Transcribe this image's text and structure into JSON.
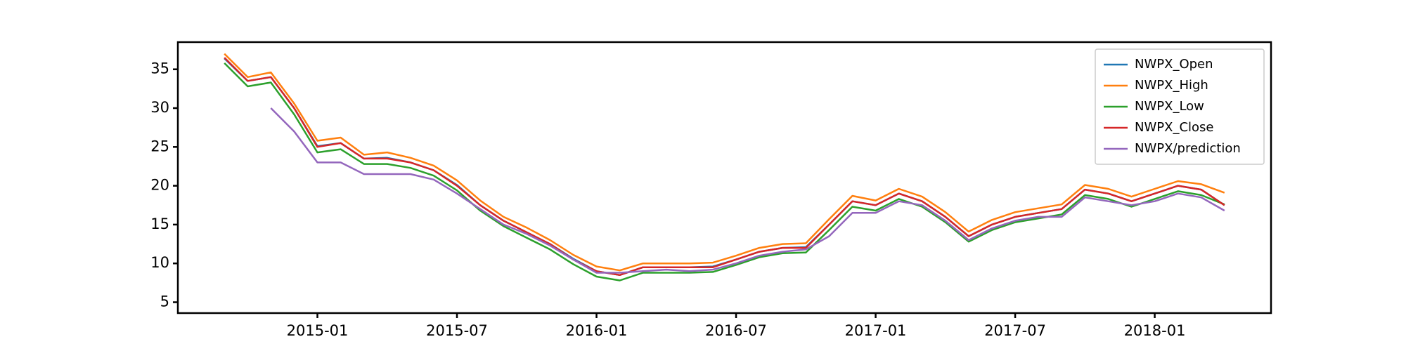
{
  "chart_data": {
    "type": "line",
    "x": [
      "2014-09",
      "2014-10",
      "2014-11",
      "2014-12",
      "2015-01",
      "2015-02",
      "2015-03",
      "2015-04",
      "2015-05",
      "2015-06",
      "2015-07",
      "2015-08",
      "2015-09",
      "2015-10",
      "2015-11",
      "2015-12",
      "2016-01",
      "2016-02",
      "2016-03",
      "2016-04",
      "2016-05",
      "2016-06",
      "2016-07",
      "2016-08",
      "2016-09",
      "2016-10",
      "2016-11",
      "2016-12",
      "2017-01",
      "2017-02",
      "2017-03",
      "2017-04",
      "2017-05",
      "2017-06",
      "2017-07",
      "2017-08",
      "2017-09",
      "2017-10",
      "2017-11",
      "2017-12",
      "2018-01",
      "2018-02",
      "2018-03",
      "2018-04"
    ],
    "series": [
      {
        "name": "NWPX_Open",
        "color": "#1f77b4",
        "values": [
          36.4,
          33.5,
          34.0,
          30.0,
          25.1,
          25.5,
          23.5,
          23.6,
          23.0,
          22.0,
          20.1,
          17.5,
          15.5,
          14.0,
          12.5,
          10.6,
          9.0,
          8.5,
          9.5,
          9.5,
          9.5,
          9.6,
          10.5,
          11.5,
          12.0,
          12.1,
          15.0,
          18.0,
          17.5,
          19.0,
          18.0,
          16.0,
          13.5,
          15.0,
          16.0,
          16.5,
          17.0,
          19.5,
          19.0,
          18.0,
          19.0,
          20.0,
          19.5,
          17.5
        ]
      },
      {
        "name": "NWPX_High",
        "color": "#ff7f0e",
        "values": [
          37.0,
          34.0,
          34.6,
          30.6,
          25.8,
          26.2,
          24.0,
          24.3,
          23.6,
          22.6,
          20.7,
          18.1,
          16.0,
          14.6,
          13.0,
          11.1,
          9.6,
          9.1,
          10.0,
          10.0,
          10.0,
          10.1,
          11.0,
          12.0,
          12.5,
          12.6,
          15.7,
          18.7,
          18.1,
          19.6,
          18.6,
          16.6,
          14.1,
          15.6,
          16.6,
          17.1,
          17.6,
          20.1,
          19.6,
          18.6,
          19.6,
          20.6,
          20.2,
          19.1
        ]
      },
      {
        "name": "NWPX_Low",
        "color": "#2ca02c",
        "values": [
          35.8,
          32.8,
          33.3,
          29.2,
          24.3,
          24.7,
          22.8,
          22.8,
          22.3,
          21.3,
          19.4,
          16.8,
          14.8,
          13.3,
          11.8,
          9.9,
          8.3,
          7.8,
          8.8,
          8.8,
          8.8,
          8.9,
          9.8,
          10.8,
          11.3,
          11.4,
          14.3,
          17.3,
          16.8,
          18.3,
          17.3,
          15.3,
          12.8,
          14.3,
          15.3,
          15.8,
          16.3,
          18.8,
          18.3,
          17.3,
          18.3,
          19.3,
          18.8,
          17.6
        ]
      },
      {
        "name": "NWPX_Close",
        "color": "#d62728",
        "values": [
          36.5,
          33.5,
          34.0,
          30.0,
          25.0,
          25.5,
          23.5,
          23.5,
          23.0,
          22.0,
          20.0,
          17.5,
          15.5,
          14.0,
          12.5,
          10.5,
          9.0,
          8.5,
          9.5,
          9.5,
          9.5,
          9.5,
          10.5,
          11.5,
          12.0,
          12.0,
          15.0,
          18.0,
          17.5,
          19.0,
          18.0,
          16.0,
          13.5,
          15.0,
          16.0,
          16.5,
          17.0,
          19.5,
          19.0,
          18.0,
          19.0,
          20.0,
          19.5,
          17.5
        ]
      },
      {
        "name": "NWPX/prediction",
        "color": "#9467bd",
        "values": [
          null,
          null,
          30.0,
          27.0,
          23.0,
          23.0,
          21.5,
          21.5,
          21.5,
          20.8,
          19.0,
          17.0,
          15.0,
          13.8,
          12.3,
          10.5,
          8.8,
          8.8,
          9.0,
          9.2,
          9.0,
          9.2,
          10.0,
          11.0,
          11.5,
          11.8,
          13.5,
          16.5,
          16.5,
          18.0,
          17.5,
          15.5,
          13.0,
          14.5,
          15.5,
          16.0,
          16.0,
          18.5,
          18.0,
          17.5,
          18.0,
          19.0,
          18.5,
          16.8
        ]
      }
    ],
    "xlim": [
      "2014-07",
      "2018-06"
    ],
    "xticks": [
      "2015-01",
      "2015-07",
      "2016-01",
      "2016-07",
      "2017-01",
      "2017-07",
      "2018-01"
    ],
    "ylim": [
      3.6,
      38.5
    ],
    "yticks": [
      5,
      10,
      15,
      20,
      25,
      30,
      35
    ],
    "legend": "upper right"
  }
}
